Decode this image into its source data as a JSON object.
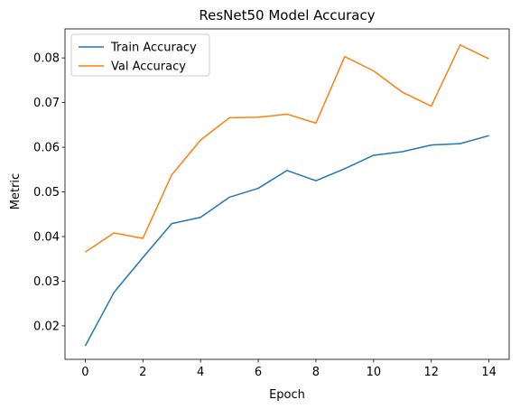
{
  "chart_data": {
    "type": "line",
    "title": "ResNet50 Model Accuracy",
    "xlabel": "Epoch",
    "ylabel": "Metric",
    "x": [
      0,
      1,
      2,
      3,
      4,
      5,
      6,
      7,
      8,
      9,
      10,
      11,
      12,
      13,
      14
    ],
    "xlim": [
      -0.7,
      14.7
    ],
    "ylim": [
      0.0125,
      0.0865
    ],
    "xticks": [
      0,
      2,
      4,
      6,
      8,
      10,
      12,
      14
    ],
    "yticks": [
      0.02,
      0.03,
      0.04,
      0.05,
      0.06,
      0.07,
      0.08
    ],
    "ytick_labels": [
      "0.02",
      "0.03",
      "0.04",
      "0.05",
      "0.06",
      "0.07",
      "0.08"
    ],
    "grid": false,
    "legend_position": "top-left",
    "series": [
      {
        "name": "Train Accuracy",
        "color": "#1f77b4",
        "values": [
          0.0155,
          0.0275,
          0.0353,
          0.0429,
          0.0443,
          0.0488,
          0.0508,
          0.0548,
          0.0525,
          0.0552,
          0.0582,
          0.059,
          0.0605,
          0.0608,
          0.0626
        ]
      },
      {
        "name": "Val Accuracy",
        "color": "#ff7f0e",
        "values": [
          0.0365,
          0.0408,
          0.0396,
          0.0538,
          0.0616,
          0.0666,
          0.0667,
          0.0674,
          0.0654,
          0.0803,
          0.0771,
          0.0723,
          0.0692,
          0.0829,
          0.0798
        ]
      }
    ]
  }
}
